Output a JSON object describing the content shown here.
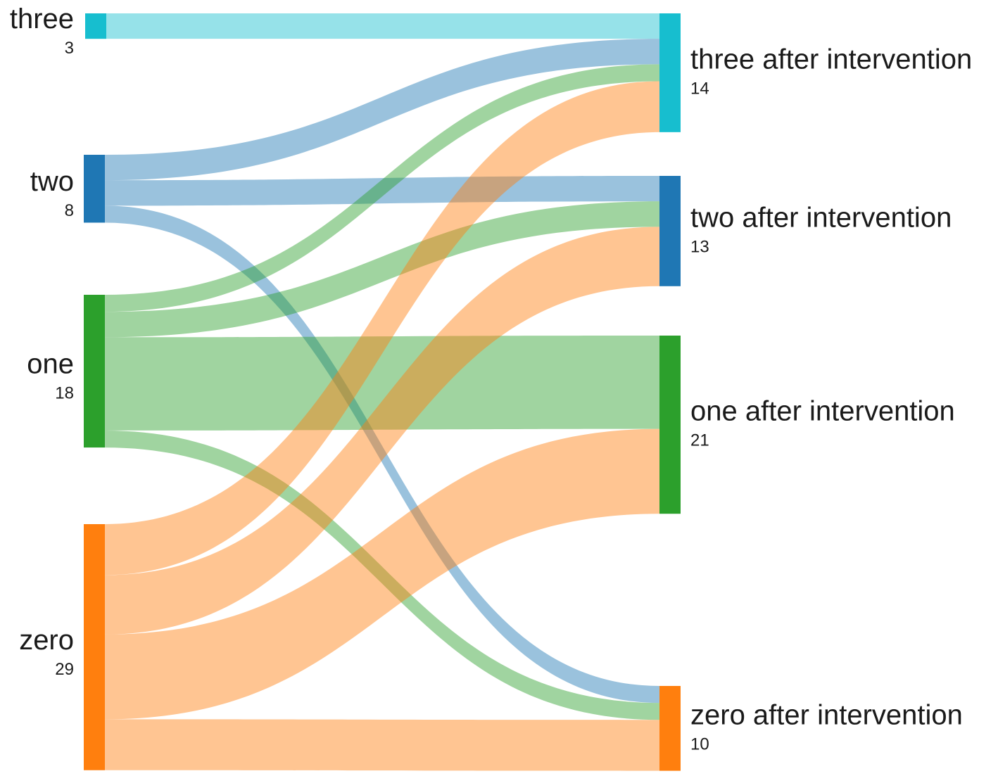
{
  "diagram": {
    "type": "sankey",
    "colors": {
      "three": "#17becf",
      "two": "#1f77b4",
      "one": "#2ca02c",
      "zero": "#ff7f0e"
    },
    "link_opacity": 0.45,
    "source_nodes": [
      {
        "id": "three",
        "label": "three",
        "value": "3",
        "color": "#17becf"
      },
      {
        "id": "two",
        "label": "two",
        "value": "8",
        "color": "#1f77b4"
      },
      {
        "id": "one",
        "label": "one",
        "value": "18",
        "color": "#2ca02c"
      },
      {
        "id": "zero",
        "label": "zero",
        "value": "29",
        "color": "#ff7f0e"
      }
    ],
    "target_nodes": [
      {
        "id": "three_after",
        "label": "three after intervention",
        "value": "14",
        "color": "#17becf"
      },
      {
        "id": "two_after",
        "label": "two after intervention",
        "value": "13",
        "color": "#1f77b4"
      },
      {
        "id": "one_after",
        "label": "one after intervention",
        "value": "21",
        "color": "#2ca02c"
      },
      {
        "id": "zero_after",
        "label": "zero after intervention",
        "value": "10",
        "color": "#ff7f0e"
      }
    ],
    "links": [
      {
        "source": "three",
        "target": "three_after",
        "value": 3
      },
      {
        "source": "two",
        "target": "three_after",
        "value": 3
      },
      {
        "source": "two",
        "target": "two_after",
        "value": 3
      },
      {
        "source": "two",
        "target": "zero_after",
        "value": 2
      },
      {
        "source": "one",
        "target": "three_after",
        "value": 2
      },
      {
        "source": "one",
        "target": "two_after",
        "value": 3
      },
      {
        "source": "one",
        "target": "one_after",
        "value": 11
      },
      {
        "source": "one",
        "target": "zero_after",
        "value": 2
      },
      {
        "source": "zero",
        "target": "three_after",
        "value": 6
      },
      {
        "source": "zero",
        "target": "two_after",
        "value": 7
      },
      {
        "source": "zero",
        "target": "one_after",
        "value": 10
      },
      {
        "source": "zero",
        "target": "zero_after",
        "value": 6
      }
    ]
  }
}
